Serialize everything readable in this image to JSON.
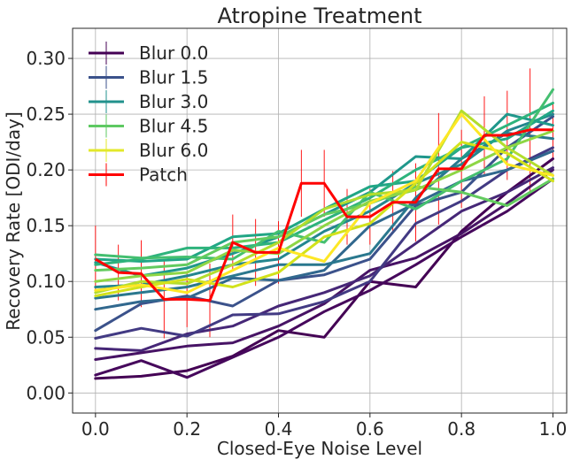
{
  "chart_data": {
    "type": "line",
    "title": "Atropine Treatment",
    "xlabel": "Closed-Eye Noise Level",
    "ylabel": "Recovery Rate [ODI/day]",
    "xlim": [
      -0.05,
      1.03
    ],
    "ylim": [
      -0.018,
      0.327
    ],
    "xticks": [
      0.0,
      0.2,
      0.4,
      0.6,
      0.8,
      1.0
    ],
    "xtick_labels": [
      "0.0",
      "0.2",
      "0.4",
      "0.6",
      "0.8",
      "1.0"
    ],
    "yticks": [
      0.0,
      0.05,
      0.1,
      0.15,
      0.2,
      0.25,
      0.3
    ],
    "ytick_labels": [
      "0.00",
      "0.05",
      "0.10",
      "0.15",
      "0.20",
      "0.25",
      "0.30"
    ],
    "grid": true,
    "legend_position": "top-left",
    "legend": [
      {
        "label": "Blur 0.0",
        "color": "#440154"
      },
      {
        "label": "Blur 1.5",
        "color": "#3b528b"
      },
      {
        "label": "Blur 3.0",
        "color": "#21918c"
      },
      {
        "label": "Blur 4.5",
        "color": "#5ec962"
      },
      {
        "label": "Blur 6.0",
        "color": "#e3e82a"
      },
      {
        "label": "Patch",
        "color": "#ff0000"
      }
    ],
    "x": [
      0.0,
      0.1,
      0.2,
      0.3,
      0.4,
      0.5,
      0.6,
      0.7,
      0.8,
      0.9,
      1.0
    ],
    "series": [
      {
        "color": "#440154",
        "values": [
          0.013,
          0.015,
          0.02,
          0.033,
          0.056,
          0.05,
          0.1,
          0.095,
          0.145,
          0.18,
          0.21
        ]
      },
      {
        "color": "#46085c",
        "values": [
          0.016,
          0.029,
          0.014,
          0.032,
          0.05,
          0.073,
          0.092,
          0.115,
          0.14,
          0.163,
          0.192
        ]
      },
      {
        "color": "#471365",
        "values": [
          0.03,
          0.036,
          0.042,
          0.045,
          0.06,
          0.08,
          0.11,
          0.121,
          0.143,
          0.17,
          0.2
        ]
      },
      {
        "color": "#462777",
        "values": [
          0.04,
          0.038,
          0.053,
          0.06,
          0.078,
          0.09,
          0.105,
          0.134,
          0.163,
          0.18,
          0.202
        ]
      },
      {
        "color": "#423a83",
        "values": [
          0.049,
          0.058,
          0.051,
          0.07,
          0.071,
          0.082,
          0.1,
          0.152,
          0.172,
          0.2,
          0.22
        ]
      },
      {
        "color": "#3b528b",
        "values": [
          0.056,
          0.08,
          0.087,
          0.078,
          0.101,
          0.106,
          0.12,
          0.168,
          0.18,
          0.22,
          0.248
        ]
      },
      {
        "color": "#31688e",
        "values": [
          0.075,
          0.082,
          0.085,
          0.103,
          0.101,
          0.11,
          0.15,
          0.17,
          0.19,
          0.2,
          0.217
        ]
      },
      {
        "color": "#2a788e",
        "values": [
          0.085,
          0.09,
          0.095,
          0.105,
          0.115,
          0.115,
          0.125,
          0.175,
          0.21,
          0.233,
          0.228
        ]
      },
      {
        "color": "#24868e",
        "values": [
          0.095,
          0.097,
          0.105,
          0.115,
          0.12,
          0.145,
          0.163,
          0.188,
          0.205,
          0.235,
          0.25
        ]
      },
      {
        "color": "#1f978b",
        "values": [
          0.117,
          0.105,
          0.112,
          0.125,
          0.14,
          0.16,
          0.18,
          0.212,
          0.21,
          0.25,
          0.24
        ]
      },
      {
        "color": "#21a685",
        "values": [
          0.12,
          0.118,
          0.12,
          0.14,
          0.143,
          0.165,
          0.185,
          0.19,
          0.22,
          0.228,
          0.253
        ]
      },
      {
        "color": "#2eb37c",
        "values": [
          0.115,
          0.12,
          0.13,
          0.13,
          0.135,
          0.155,
          0.175,
          0.2,
          0.22,
          0.24,
          0.26
        ]
      },
      {
        "color": "#44bf70",
        "values": [
          0.124,
          0.121,
          0.122,
          0.12,
          0.145,
          0.135,
          0.18,
          0.165,
          0.19,
          0.21,
          0.272
        ]
      },
      {
        "color": "#63cb5f",
        "values": [
          0.11,
          0.112,
          0.115,
          0.135,
          0.14,
          0.16,
          0.17,
          0.185,
          0.18,
          0.168,
          0.192
        ]
      },
      {
        "color": "#8ed645",
        "values": [
          0.1,
          0.105,
          0.108,
          0.128,
          0.125,
          0.15,
          0.172,
          0.182,
          0.2,
          0.22,
          0.235
        ]
      },
      {
        "color": "#b2dd2d",
        "values": [
          0.09,
          0.1,
          0.098,
          0.115,
          0.135,
          0.165,
          0.178,
          0.182,
          0.253,
          0.22,
          0.195
        ]
      },
      {
        "color": "#d2e21b",
        "values": [
          0.087,
          0.095,
          0.102,
          0.095,
          0.108,
          0.14,
          0.152,
          0.188,
          0.225,
          0.215,
          0.19
        ]
      },
      {
        "color": "#fde725",
        "values": [
          0.092,
          0.097,
          0.09,
          0.11,
          0.13,
          0.118,
          0.17,
          0.19,
          0.25,
          0.205,
          0.195
        ]
      }
    ],
    "patch": {
      "color": "#ff0000",
      "x": [
        0.0,
        0.05,
        0.1,
        0.15,
        0.2,
        0.25,
        0.3,
        0.35,
        0.4,
        0.45,
        0.5,
        0.55,
        0.6,
        0.65,
        0.7,
        0.75,
        0.8,
        0.85,
        0.9,
        0.95,
        1.0
      ],
      "values": [
        0.12,
        0.108,
        0.107,
        0.084,
        0.084,
        0.083,
        0.135,
        0.126,
        0.126,
        0.188,
        0.188,
        0.158,
        0.158,
        0.171,
        0.171,
        0.201,
        0.201,
        0.231,
        0.231,
        0.236,
        0.236
      ],
      "error": [
        0.03,
        0.025,
        0.03,
        0.035,
        0.025,
        0.033,
        0.025,
        0.03,
        0.028,
        0.03,
        0.03,
        0.025,
        0.025,
        0.028,
        0.035,
        0.05,
        0.035,
        0.035,
        0.04,
        0.055,
        0.025
      ]
    }
  }
}
